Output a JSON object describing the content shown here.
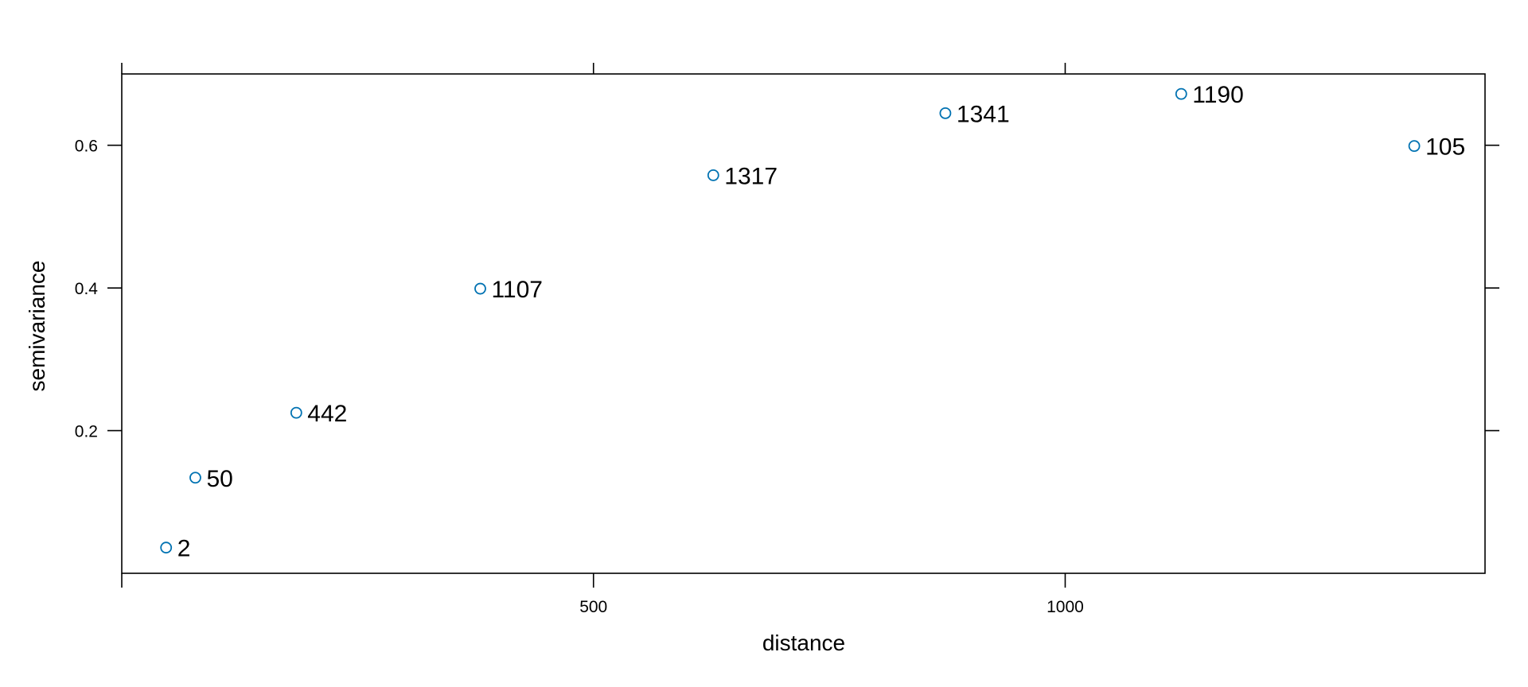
{
  "chart_data": {
    "type": "scatter",
    "title": "",
    "xlabel": "distance",
    "ylabel": "semivariance",
    "xlim": [
      0,
      1445
    ],
    "ylim": [
      0,
      0.7
    ],
    "x_ticks": [
      0,
      500,
      1000
    ],
    "x_tick_labels": [
      "",
      "500",
      "1000"
    ],
    "y_ticks": [
      0.2,
      0.4,
      0.6
    ],
    "y_tick_labels": [
      "0.2",
      "0.4",
      "0.6"
    ],
    "grid": false,
    "legend": "none",
    "point_color": "#0072B2",
    "series": [
      {
        "points": [
          {
            "x": 47,
            "y": 0.036,
            "label": "2"
          },
          {
            "x": 78,
            "y": 0.134,
            "label": "50"
          },
          {
            "x": 185,
            "y": 0.225,
            "label": "442"
          },
          {
            "x": 380,
            "y": 0.399,
            "label": "1107"
          },
          {
            "x": 627,
            "y": 0.558,
            "label": "1317"
          },
          {
            "x": 873,
            "y": 0.645,
            "label": "1341"
          },
          {
            "x": 1123,
            "y": 0.672,
            "label": "1190"
          },
          {
            "x": 1370,
            "y": 0.599,
            "label": "105"
          }
        ]
      }
    ]
  }
}
